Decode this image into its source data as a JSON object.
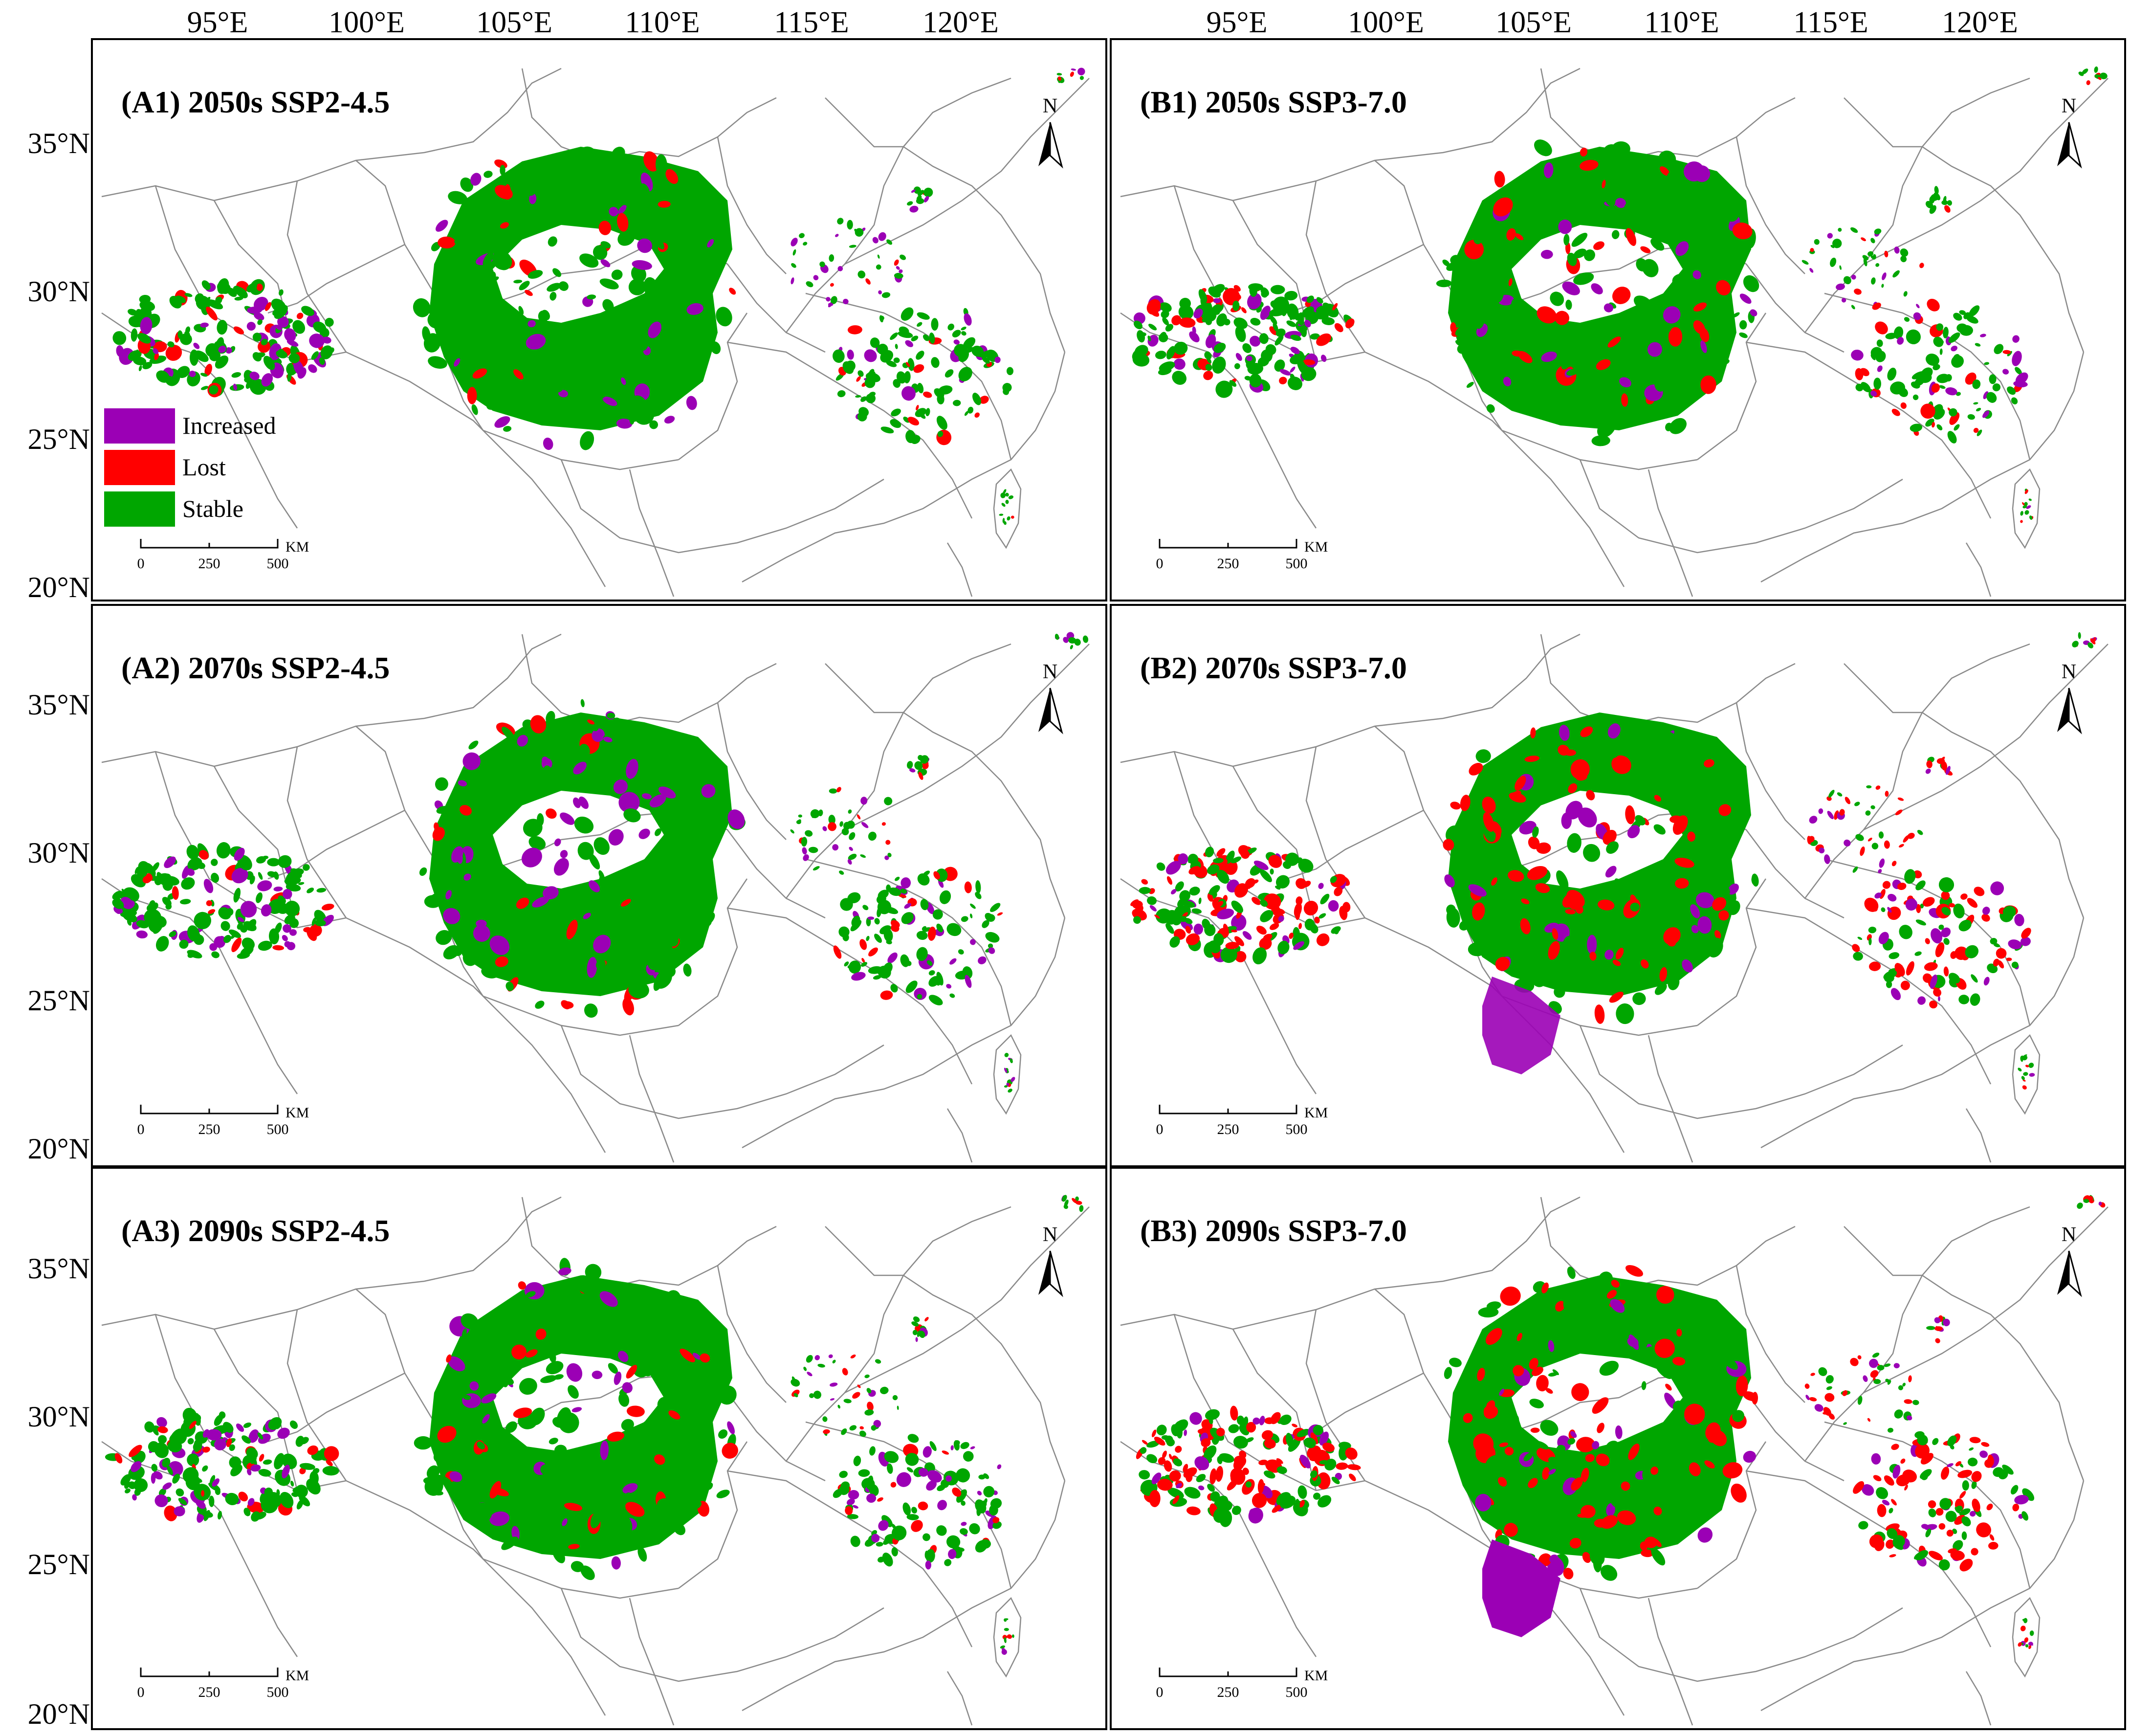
{
  "lon_labels": [
    "95°E",
    "100°E",
    "105°E",
    "110°E",
    "115°E",
    "120°E"
  ],
  "lat_labels": [
    "35°N",
    "30°N",
    "25°N",
    "20°N"
  ],
  "colors": {
    "increased": "#9b00b5",
    "lost": "#ff0000",
    "stable": "#00a600",
    "boundary": "#8a8a8a",
    "frame": "#000000"
  },
  "legend": {
    "increased": "Increased",
    "lost": "Lost",
    "stable": "Stable"
  },
  "scalebar": {
    "t0": "0",
    "t1": "250",
    "t2": "500",
    "unit": "KM"
  },
  "north_label": "N",
  "panels": [
    {
      "id": "A1",
      "title": "(A1) 2050s SSP2-4.5"
    },
    {
      "id": "B1",
      "title": "(B1) 2050s SSP3-7.0"
    },
    {
      "id": "A2",
      "title": "(A2) 2070s SSP2-4.5"
    },
    {
      "id": "B2",
      "title": "(B2) 2070s SSP3-7.0"
    },
    {
      "id": "A3",
      "title": "(A3) 2090s SSP2-4.5"
    },
    {
      "id": "B3",
      "title": "(B3) 2090s SSP3-7.0"
    }
  ]
}
